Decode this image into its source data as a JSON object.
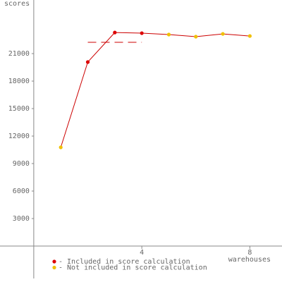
{
  "chart_data": {
    "type": "line",
    "y_label": "scores",
    "x_label": "warehouses",
    "x": [
      1,
      2,
      3,
      4,
      5,
      6,
      7,
      8
    ],
    "values": [
      10770,
      20080,
      23300,
      23230,
      23080,
      22850,
      23150,
      22920
    ],
    "included": [
      false,
      true,
      true,
      true,
      false,
      false,
      false,
      false
    ],
    "line_color": "#cc0000",
    "score_line": {
      "value": 22230,
      "from": 2,
      "to": 4,
      "color": "#cc0000"
    },
    "legend": [
      {
        "label": "- Included in score calculation",
        "color": "#dd0000"
      },
      {
        "label": "- Not included in score calculation",
        "color": "#f0c000"
      }
    ],
    "xlim": [
      -1.25,
      9.19
    ],
    "xticks": [
      4,
      8
    ],
    "ylim": [
      -3540,
      26850
    ],
    "yticks": [
      3000,
      6000,
      9000,
      12000,
      15000,
      18000,
      21000
    ]
  }
}
